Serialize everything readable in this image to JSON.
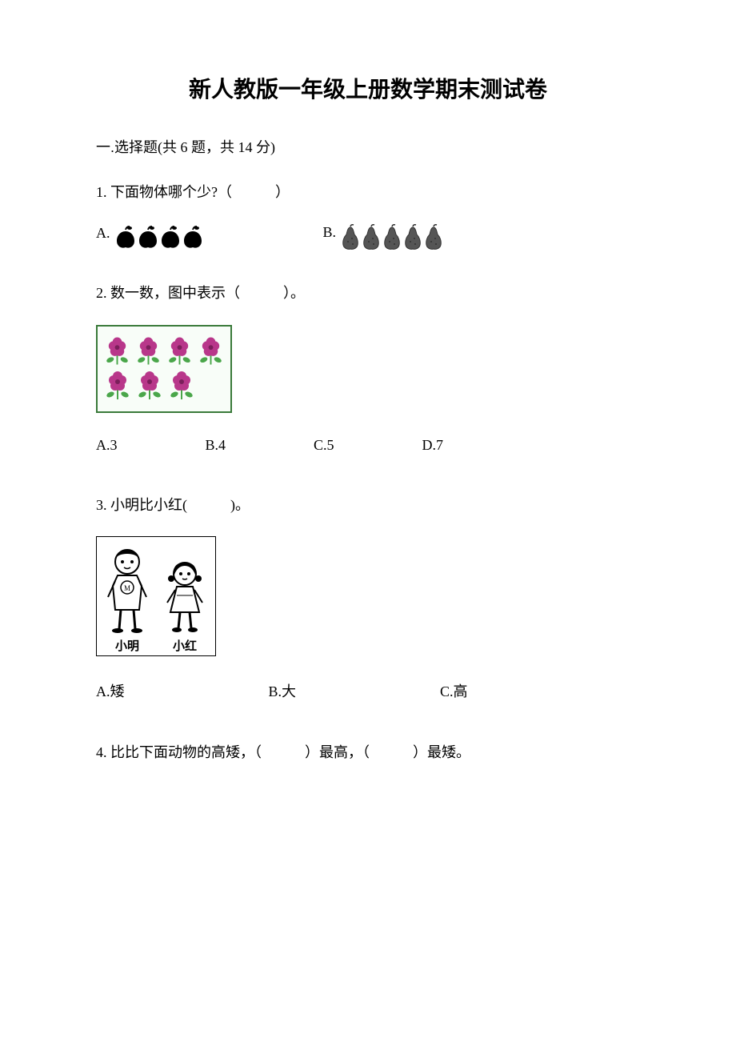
{
  "title": "新人教版一年级上册数学期末测试卷",
  "section": {
    "prefix": "一.",
    "label": "选择题",
    "detail": "(共 6 题，共 14 分)"
  },
  "q1": {
    "text": "1. 下面物体哪个少?（　　　）",
    "optA": "A.",
    "optB": "B.",
    "apple_count": 4,
    "pear_count": 5,
    "apple_color": "#000000",
    "pear_color": "#555555"
  },
  "q2": {
    "text": "2. 数一数，图中表示（　　　）。",
    "row1_count": 4,
    "row2_count": 3,
    "flower_color": "#b8378a",
    "leaf_color": "#4aa64a",
    "border_color": "#3a7a3a",
    "options": [
      {
        "label": "A.",
        "value": "3"
      },
      {
        "label": "B.",
        "value": "4"
      },
      {
        "label": "C.",
        "value": "5"
      },
      {
        "label": "D.",
        "value": "7"
      }
    ]
  },
  "q3": {
    "text": "3. 小明比小红(　　　)。",
    "child1_label": "小明",
    "child2_label": "小红",
    "options": [
      {
        "label": "A.",
        "value": "矮"
      },
      {
        "label": "B.",
        "value": "大"
      },
      {
        "label": "C.",
        "value": "高"
      }
    ]
  },
  "q4": {
    "text": "4. 比比下面动物的高矮，（　　　）最高，（　　　）最矮。"
  }
}
